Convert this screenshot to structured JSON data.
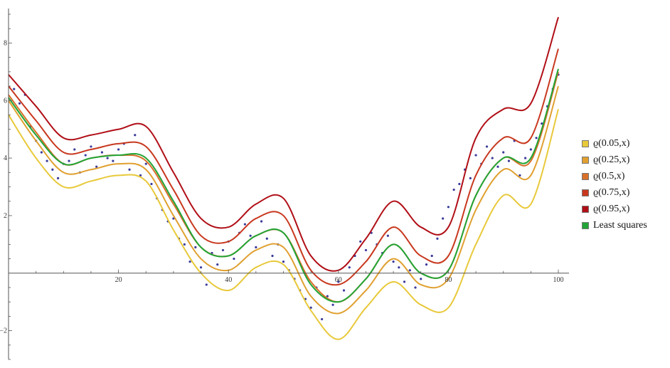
{
  "chart_data": {
    "type": "line",
    "title": "",
    "xlabel": "",
    "ylabel": "",
    "xlim": [
      0,
      100
    ],
    "ylim": [
      -3,
      9
    ],
    "x_ticks": [
      20,
      40,
      60,
      80,
      100
    ],
    "y_ticks": [
      -2,
      2,
      4,
      6,
      8
    ],
    "grid": false,
    "legend_position": "right",
    "x": [
      0,
      5,
      10,
      15,
      20,
      25,
      30,
      35,
      40,
      45,
      50,
      55,
      60,
      65,
      70,
      75,
      80,
      85,
      90,
      95,
      100
    ],
    "series": [
      {
        "name": "ϱ(0.05,x)",
        "color": "#e8c93a",
        "values": [
          5.5,
          4.0,
          3.0,
          3.2,
          3.4,
          3.2,
          1.5,
          0.0,
          -0.6,
          0.2,
          0.3,
          -1.3,
          -2.3,
          -1.2,
          -0.3,
          -1.1,
          -1.2,
          1.0,
          2.7,
          2.4,
          5.7
        ]
      },
      {
        "name": "ϱ(0.25,x)",
        "color": "#e0a030",
        "values": [
          6.0,
          4.6,
          3.5,
          3.6,
          3.8,
          3.6,
          2.0,
          0.5,
          0.1,
          0.8,
          0.9,
          -0.8,
          -1.4,
          -0.6,
          0.5,
          -0.4,
          -0.2,
          2.2,
          3.6,
          3.4,
          6.5
        ]
      },
      {
        "name": "ϱ(0.5,x)",
        "color": "#d8702a",
        "values": [
          6.2,
          4.9,
          3.8,
          4.0,
          4.1,
          3.9,
          2.4,
          0.9,
          0.6,
          1.3,
          1.4,
          -0.3,
          -1.0,
          -0.2,
          1.0,
          0.0,
          0.1,
          2.7,
          4.0,
          3.9,
          7.0
        ]
      },
      {
        "name": "ϱ(0.75,x)",
        "color": "#c8381e",
        "values": [
          6.5,
          5.3,
          4.2,
          4.3,
          4.5,
          4.4,
          2.9,
          1.3,
          1.1,
          1.9,
          2.0,
          0.1,
          -0.4,
          0.4,
          1.6,
          0.6,
          0.6,
          3.4,
          4.7,
          4.7,
          7.8
        ]
      },
      {
        "name": "ϱ(0.95,x)",
        "color": "#b00e16",
        "values": [
          6.9,
          5.8,
          4.7,
          4.8,
          5.0,
          5.1,
          3.5,
          1.9,
          1.6,
          2.4,
          2.6,
          0.6,
          0.1,
          1.2,
          2.5,
          1.6,
          1.6,
          4.7,
          5.7,
          5.9,
          8.9
        ]
      },
      {
        "name": "Least squares",
        "color": "#22a536",
        "values": [
          6.1,
          4.8,
          3.8,
          4.0,
          4.1,
          4.0,
          2.5,
          0.9,
          0.6,
          1.3,
          1.4,
          -0.4,
          -1.0,
          -0.2,
          1.0,
          0.0,
          0.1,
          2.7,
          4.0,
          4.0,
          7.1
        ]
      }
    ],
    "scatter": {
      "color": "#3a3a9a",
      "points": [
        [
          1,
          6.4
        ],
        [
          2,
          5.9
        ],
        [
          3,
          6.2
        ],
        [
          4,
          5.1
        ],
        [
          5,
          4.6
        ],
        [
          6,
          4.2
        ],
        [
          7,
          3.9
        ],
        [
          8,
          3.6
        ],
        [
          9,
          3.3
        ],
        [
          10,
          3.8
        ],
        [
          11,
          3.9
        ],
        [
          12,
          4.3
        ],
        [
          13,
          3.5
        ],
        [
          14,
          4.1
        ],
        [
          15,
          4.4
        ],
        [
          16,
          3.7
        ],
        [
          17,
          4.2
        ],
        [
          18,
          4.0
        ],
        [
          19,
          3.9
        ],
        [
          20,
          4.3
        ],
        [
          21,
          4.5
        ],
        [
          22,
          3.6
        ],
        [
          23,
          4.8
        ],
        [
          24,
          3.4
        ],
        [
          25,
          3.8
        ],
        [
          26,
          3.1
        ],
        [
          27,
          2.6
        ],
        [
          28,
          2.2
        ],
        [
          29,
          1.8
        ],
        [
          30,
          1.9
        ],
        [
          31,
          1.2
        ],
        [
          32,
          1.0
        ],
        [
          33,
          0.4
        ],
        [
          34,
          0.9
        ],
        [
          35,
          0.2
        ],
        [
          36,
          -0.4
        ],
        [
          37,
          0.7
        ],
        [
          38,
          0.3
        ],
        [
          39,
          0.8
        ],
        [
          40,
          1.1
        ],
        [
          41,
          0.5
        ],
        [
          42,
          1.4
        ],
        [
          43,
          1.7
        ],
        [
          44,
          1.3
        ],
        [
          45,
          0.9
        ],
        [
          46,
          1.8
        ],
        [
          47,
          1.2
        ],
        [
          48,
          0.6
        ],
        [
          49,
          1.0
        ],
        [
          50,
          0.4
        ],
        [
          51,
          0.1
        ],
        [
          52,
          -0.2
        ],
        [
          53,
          -0.6
        ],
        [
          54,
          -0.9
        ],
        [
          55,
          -1.2
        ],
        [
          56,
          -0.5
        ],
        [
          57,
          -1.6
        ],
        [
          58,
          -0.8
        ],
        [
          59,
          -1.1
        ],
        [
          60,
          -0.3
        ],
        [
          61,
          -0.6
        ],
        [
          62,
          0.2
        ],
        [
          63,
          0.6
        ],
        [
          64,
          1.1
        ],
        [
          65,
          0.8
        ],
        [
          66,
          1.4
        ],
        [
          67,
          1.0
        ],
        [
          68,
          0.7
        ],
        [
          69,
          1.3
        ],
        [
          70,
          0.4
        ],
        [
          71,
          0.2
        ],
        [
          72,
          -0.3
        ],
        [
          73,
          0.1
        ],
        [
          74,
          -0.5
        ],
        [
          75,
          -0.2
        ],
        [
          76,
          0.3
        ],
        [
          77,
          0.6
        ],
        [
          78,
          1.2
        ],
        [
          79,
          1.9
        ],
        [
          80,
          2.3
        ],
        [
          81,
          2.9
        ],
        [
          82,
          3.1
        ],
        [
          83,
          3.6
        ],
        [
          84,
          3.3
        ],
        [
          85,
          4.1
        ],
        [
          86,
          3.8
        ],
        [
          87,
          4.4
        ],
        [
          88,
          4.0
        ],
        [
          89,
          3.7
        ],
        [
          90,
          4.2
        ],
        [
          91,
          3.9
        ],
        [
          92,
          4.6
        ],
        [
          93,
          3.4
        ],
        [
          94,
          4.0
        ],
        [
          95,
          4.3
        ],
        [
          96,
          4.7
        ],
        [
          97,
          5.2
        ],
        [
          98,
          5.8
        ],
        [
          99,
          6.4
        ],
        [
          100,
          6.9
        ]
      ]
    }
  }
}
